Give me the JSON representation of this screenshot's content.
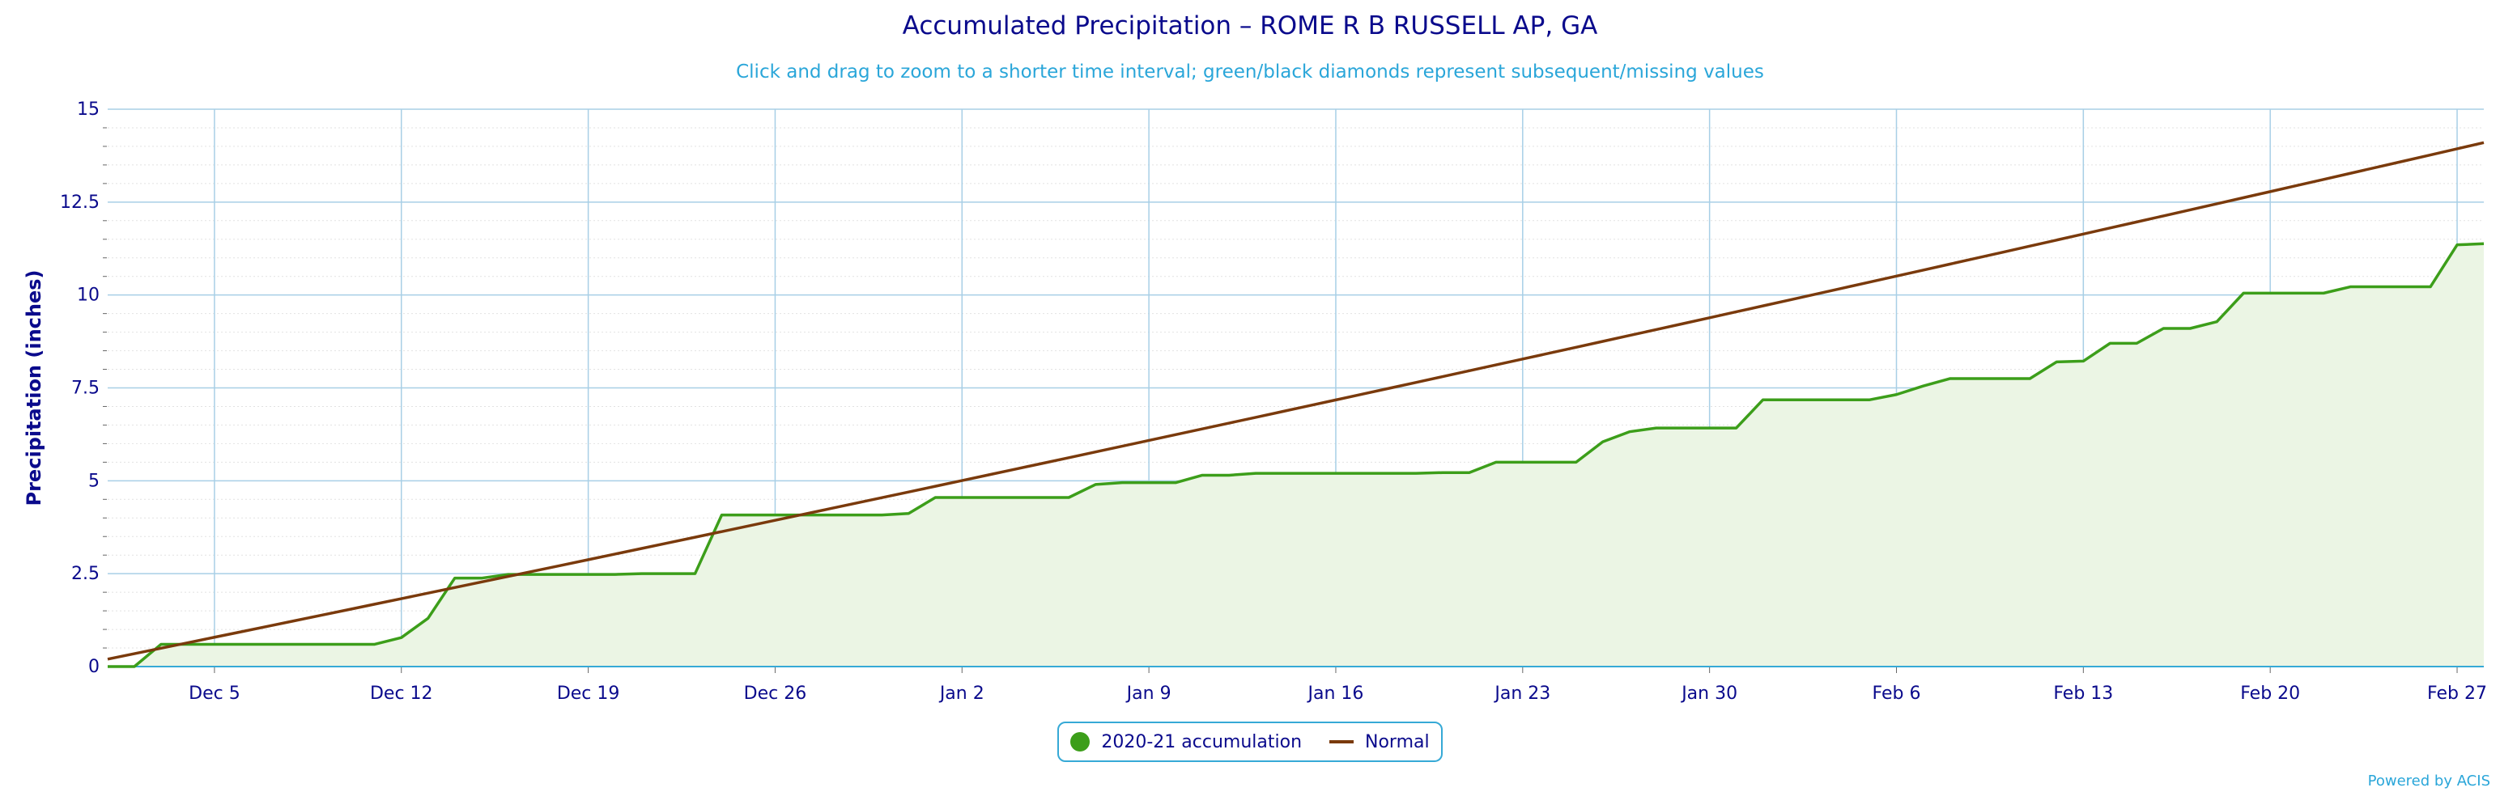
{
  "chart_data": {
    "type": "area",
    "title": "Accumulated Precipitation – ROME R B RUSSELL AP, GA",
    "subtitle": "Click and drag to zoom to a shorter time interval; green/black diamonds represent subsequent/missing values",
    "ylabel": "Precipitation (inches)",
    "ylim": [
      0,
      15
    ],
    "yticks": [
      0,
      2.5,
      5,
      7.5,
      10,
      12.5,
      15
    ],
    "ytick_labels": [
      "0",
      "2.5",
      "5",
      "7.5",
      "10",
      "12.5",
      "15"
    ],
    "xticks": [
      {
        "day": 4,
        "label": "Dec 5"
      },
      {
        "day": 11,
        "label": "Dec 12"
      },
      {
        "day": 18,
        "label": "Dec 19"
      },
      {
        "day": 25,
        "label": "Dec 26"
      },
      {
        "day": 32,
        "label": "Jan 2"
      },
      {
        "day": 39,
        "label": "Jan 9"
      },
      {
        "day": 46,
        "label": "Jan 16"
      },
      {
        "day": 53,
        "label": "Jan 23"
      },
      {
        "day": 60,
        "label": "Jan 30"
      },
      {
        "day": 67,
        "label": "Feb 6"
      },
      {
        "day": 74,
        "label": "Feb 13"
      },
      {
        "day": 81,
        "label": "Feb 20"
      },
      {
        "day": 88,
        "label": "Feb 27"
      }
    ],
    "x_start": "Dec 1",
    "x_end": "Feb 28",
    "legend_position": "bottom-center",
    "grid": true,
    "series": [
      {
        "name": "2020-21 accumulation",
        "color": "#3c9e1a",
        "fill": "#ebf5e4",
        "values": [
          0,
          0,
          0.6,
          0.6,
          0.6,
          0.6,
          0.6,
          0.6,
          0.6,
          0.6,
          0.6,
          0.78,
          1.3,
          2.38,
          2.38,
          2.48,
          2.48,
          2.48,
          2.48,
          2.48,
          2.5,
          2.5,
          2.5,
          4.08,
          4.08,
          4.08,
          4.08,
          4.08,
          4.08,
          4.08,
          4.12,
          4.55,
          4.55,
          4.55,
          4.55,
          4.55,
          4.55,
          4.9,
          4.95,
          4.95,
          4.95,
          5.15,
          5.15,
          5.2,
          5.2,
          5.2,
          5.2,
          5.2,
          5.2,
          5.2,
          5.22,
          5.22,
          5.5,
          5.5,
          5.5,
          5.5,
          6.05,
          6.32,
          6.42,
          6.42,
          6.42,
          6.42,
          7.18,
          7.18,
          7.18,
          7.18,
          7.18,
          7.32,
          7.55,
          7.75,
          7.75,
          7.75,
          7.75,
          8.2,
          8.22,
          8.7,
          8.7,
          9.1,
          9.1,
          9.28,
          10.05,
          10.05,
          10.05,
          10.05,
          10.22,
          10.22,
          10.22,
          10.22,
          11.35,
          11.38
        ]
      },
      {
        "name": "Normal",
        "color": "#7a3a0c",
        "start": 0.2,
        "end": 14.1
      }
    ]
  },
  "credits": "Powered by ACIS"
}
